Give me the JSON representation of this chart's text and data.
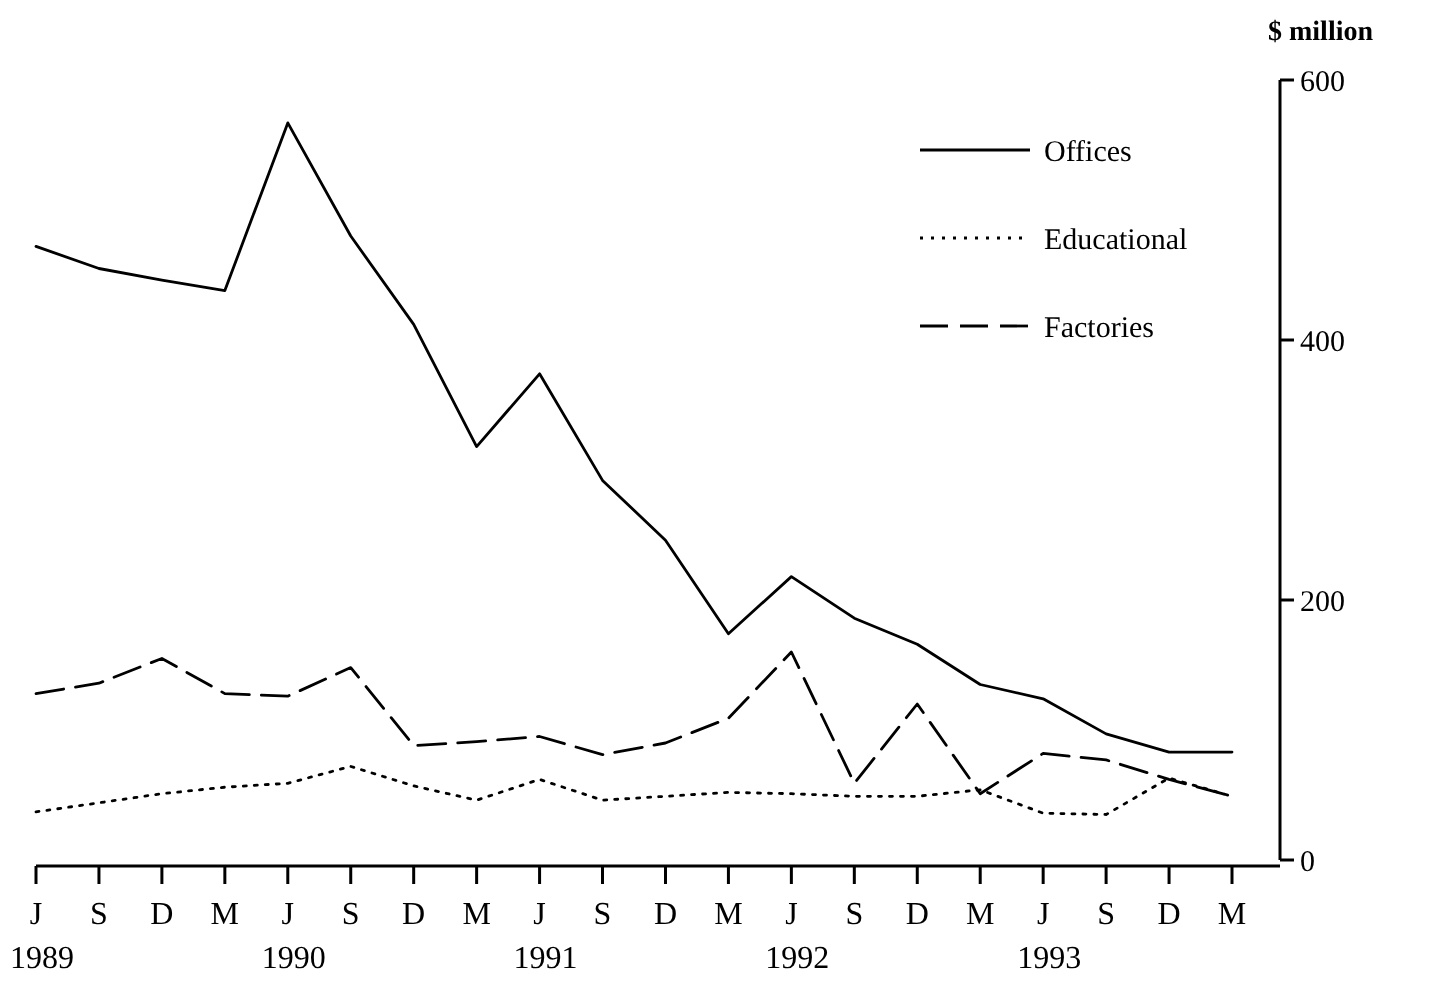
{
  "chart_data": {
    "type": "line",
    "ylabel": "$ million",
    "categories": [
      "J\n1989",
      "S",
      "D",
      "M",
      "J\n1990",
      "S",
      "D",
      "M",
      "J\n1991",
      "S",
      "D",
      "M",
      "J\n1992",
      "S",
      "D",
      "M",
      "J\n1993",
      "S",
      "D",
      "M"
    ],
    "series": [
      {
        "name": "Offices",
        "color": "#000000",
        "line_style": "solid",
        "values": [
          472,
          455,
          446,
          438,
          567,
          480,
          412,
          318,
          374,
          292,
          246,
          174,
          218,
          186,
          166,
          135,
          124,
          97,
          83,
          83
        ]
      },
      {
        "name": "Educational",
        "color": "#000000",
        "line_style": "dotted",
        "values": [
          37,
          44,
          51,
          56,
          59,
          72,
          57,
          46,
          62,
          46,
          49,
          52,
          51,
          49,
          49,
          54,
          36,
          35,
          63,
          49
        ]
      },
      {
        "name": "Factories",
        "color": "#000000",
        "line_style": "dashed",
        "values": [
          128,
          136,
          155,
          128,
          126,
          148,
          88,
          91,
          95,
          81,
          90,
          109,
          160,
          59,
          120,
          51,
          82,
          77,
          62,
          49
        ]
      }
    ],
    "ylim": [
      0,
      600
    ],
    "yticks": [
      0,
      200,
      400,
      600
    ],
    "grid": false,
    "legend": "top right",
    "marker": "none"
  }
}
